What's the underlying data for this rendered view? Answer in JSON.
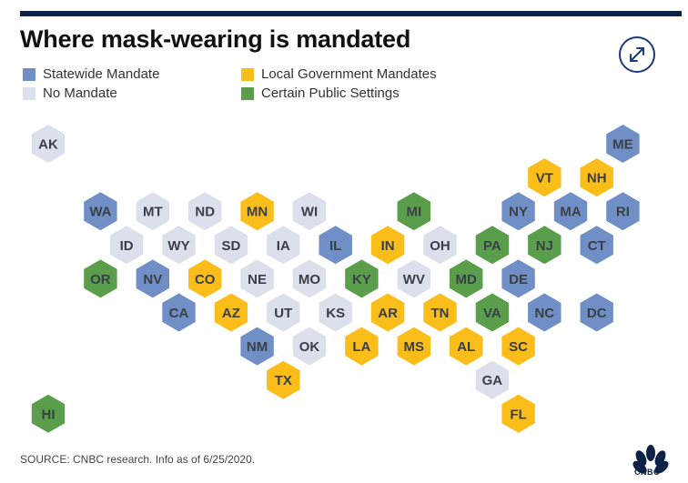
{
  "title": "Where mask-wearing is mandated",
  "legend": [
    {
      "key": "statewide",
      "label": "Statewide Mandate",
      "color": "#6f8fc6"
    },
    {
      "key": "none",
      "label": "No Mandate",
      "color": "#dbe0ec"
    },
    {
      "key": "local",
      "label": "Local Government Mandates",
      "color": "#fbbd19"
    },
    {
      "key": "public",
      "label": "Certain Public Settings",
      "color": "#5a9e4c"
    }
  ],
  "label_colors": {
    "dark": "#3a3f47",
    "on_light": "#3a3f47"
  },
  "states": [
    {
      "abbr": "AK",
      "status": "none",
      "row": 0,
      "col": 0
    },
    {
      "abbr": "ME",
      "status": "statewide",
      "row": 0,
      "col": 11
    },
    {
      "abbr": "VT",
      "status": "local",
      "row": 1,
      "col": 9
    },
    {
      "abbr": "NH",
      "status": "local",
      "row": 1,
      "col": 10
    },
    {
      "abbr": "WA",
      "status": "statewide",
      "row": 2,
      "col": 1
    },
    {
      "abbr": "MT",
      "status": "none",
      "row": 2,
      "col": 2
    },
    {
      "abbr": "ND",
      "status": "none",
      "row": 2,
      "col": 3
    },
    {
      "abbr": "MN",
      "status": "local",
      "row": 2,
      "col": 4
    },
    {
      "abbr": "WI",
      "status": "none",
      "row": 2,
      "col": 5
    },
    {
      "abbr": "MI",
      "status": "public",
      "row": 2,
      "col": 7
    },
    {
      "abbr": "NY",
      "status": "statewide",
      "row": 2,
      "col": 9
    },
    {
      "abbr": "MA",
      "status": "statewide",
      "row": 2,
      "col": 10
    },
    {
      "abbr": "RI",
      "status": "statewide",
      "row": 2,
      "col": 11
    },
    {
      "abbr": "ID",
      "status": "none",
      "row": 3,
      "col": 1
    },
    {
      "abbr": "WY",
      "status": "none",
      "row": 3,
      "col": 2
    },
    {
      "abbr": "SD",
      "status": "none",
      "row": 3,
      "col": 3
    },
    {
      "abbr": "IA",
      "status": "none",
      "row": 3,
      "col": 4
    },
    {
      "abbr": "IL",
      "status": "statewide",
      "row": 3,
      "col": 5
    },
    {
      "abbr": "IN",
      "status": "local",
      "row": 3,
      "col": 6
    },
    {
      "abbr": "OH",
      "status": "none",
      "row": 3,
      "col": 7
    },
    {
      "abbr": "PA",
      "status": "public",
      "row": 3,
      "col": 8
    },
    {
      "abbr": "NJ",
      "status": "public",
      "row": 3,
      "col": 9
    },
    {
      "abbr": "CT",
      "status": "statewide",
      "row": 3,
      "col": 10
    },
    {
      "abbr": "OR",
      "status": "public",
      "row": 4,
      "col": 1
    },
    {
      "abbr": "NV",
      "status": "statewide",
      "row": 4,
      "col": 2
    },
    {
      "abbr": "CO",
      "status": "local",
      "row": 4,
      "col": 3
    },
    {
      "abbr": "NE",
      "status": "none",
      "row": 4,
      "col": 4
    },
    {
      "abbr": "MO",
      "status": "none",
      "row": 4,
      "col": 5
    },
    {
      "abbr": "KY",
      "status": "public",
      "row": 4,
      "col": 6
    },
    {
      "abbr": "WV",
      "status": "none",
      "row": 4,
      "col": 7
    },
    {
      "abbr": "MD",
      "status": "public",
      "row": 4,
      "col": 8
    },
    {
      "abbr": "DE",
      "status": "statewide",
      "row": 4,
      "col": 9
    },
    {
      "abbr": "CA",
      "status": "statewide",
      "row": 5,
      "col": 2
    },
    {
      "abbr": "AZ",
      "status": "local",
      "row": 5,
      "col": 3
    },
    {
      "abbr": "UT",
      "status": "none",
      "row": 5,
      "col": 4
    },
    {
      "abbr": "KS",
      "status": "none",
      "row": 5,
      "col": 5
    },
    {
      "abbr": "AR",
      "status": "local",
      "row": 5,
      "col": 6
    },
    {
      "abbr": "TN",
      "status": "local",
      "row": 5,
      "col": 7
    },
    {
      "abbr": "VA",
      "status": "public",
      "row": 5,
      "col": 8
    },
    {
      "abbr": "NC",
      "status": "statewide",
      "row": 5,
      "col": 9
    },
    {
      "abbr": "DC",
      "status": "statewide",
      "row": 5,
      "col": 10
    },
    {
      "abbr": "NM",
      "status": "statewide",
      "row": 6,
      "col": 4
    },
    {
      "abbr": "OK",
      "status": "none",
      "row": 6,
      "col": 5
    },
    {
      "abbr": "LA",
      "status": "local",
      "row": 6,
      "col": 6
    },
    {
      "abbr": "MS",
      "status": "local",
      "row": 6,
      "col": 7
    },
    {
      "abbr": "AL",
      "status": "local",
      "row": 6,
      "col": 8
    },
    {
      "abbr": "SC",
      "status": "local",
      "row": 6,
      "col": 9
    },
    {
      "abbr": "TX",
      "status": "local",
      "row": 7,
      "col": 4
    },
    {
      "abbr": "GA",
      "status": "none",
      "row": 7,
      "col": 8
    },
    {
      "abbr": "HI",
      "status": "public",
      "row": 8,
      "col": 0
    },
    {
      "abbr": "FL",
      "status": "local",
      "row": 8,
      "col": 9
    }
  ],
  "source": "SOURCE: CNBC research. Info as of 6/25/2020.",
  "logo_text": "CNBC",
  "icons": {
    "expand": "expand-arrows-icon",
    "logo": "peacock-logo-icon"
  }
}
